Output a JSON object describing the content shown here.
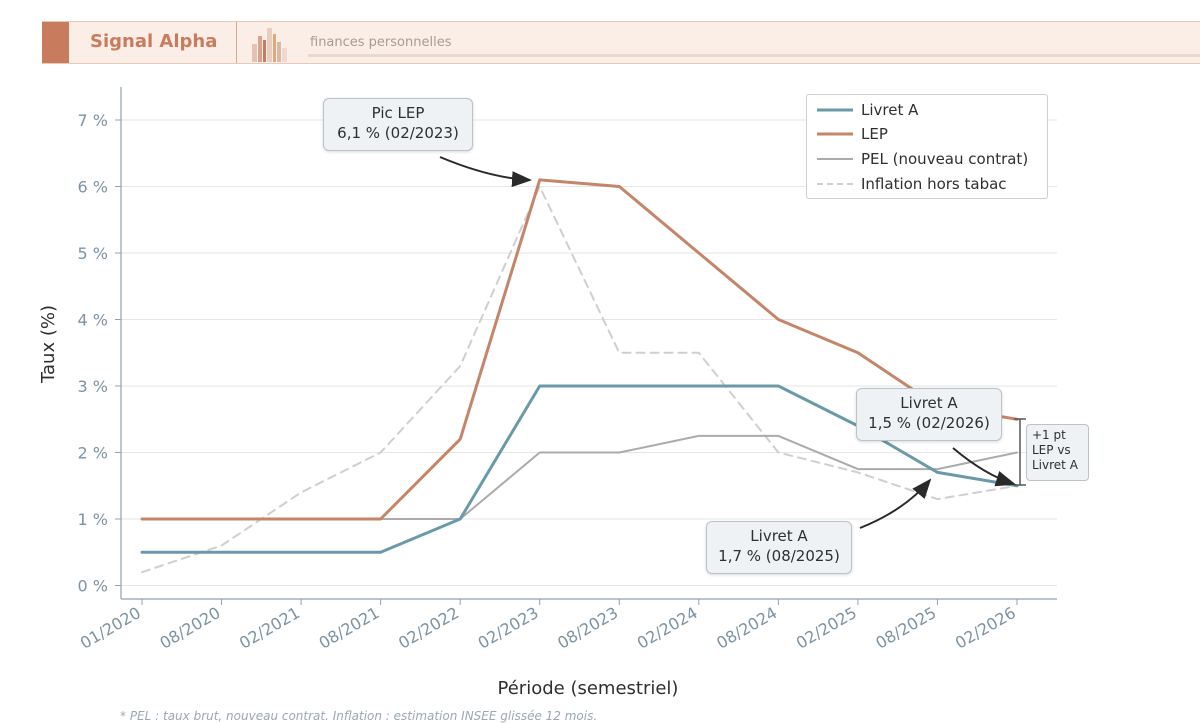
{
  "header": {
    "brand": "Signal Alpha",
    "tagline": "finances personnelles",
    "brand_color": "#c97c5d"
  },
  "chart_data": {
    "type": "line",
    "categories": [
      "01/2020",
      "08/2020",
      "02/2021",
      "08/2021",
      "02/2022",
      "02/2023",
      "08/2023",
      "02/2024",
      "08/2024",
      "02/2025",
      "08/2025",
      "02/2026"
    ],
    "series": [
      {
        "name": "Livret A",
        "color": "#6a9aa8",
        "dash": "solid",
        "values": [
          0.5,
          0.5,
          0.5,
          0.5,
          1.0,
          3.0,
          3.0,
          3.0,
          3.0,
          2.4,
          1.7,
          1.5
        ]
      },
      {
        "name": "LEP",
        "color": "#c4856a",
        "dash": "solid",
        "values": [
          1.0,
          1.0,
          1.0,
          1.0,
          2.2,
          6.1,
          6.0,
          5.0,
          4.0,
          3.5,
          2.7,
          2.5
        ]
      },
      {
        "name": "PEL (nouveau contrat)",
        "color": "#ababab",
        "dash": "solid",
        "values": [
          1.0,
          1.0,
          1.0,
          1.0,
          1.0,
          2.0,
          2.0,
          2.25,
          2.25,
          1.75,
          1.75,
          2.0
        ]
      },
      {
        "name": "Inflation hors tabac",
        "color": "#cfcfcf",
        "dash": "dashed",
        "values": [
          0.2,
          0.6,
          1.4,
          2.0,
          3.3,
          6.0,
          3.5,
          3.5,
          2.0,
          1.7,
          1.3,
          1.5
        ]
      }
    ],
    "yticks": [
      "0 %",
      "1 %",
      "2 %",
      "3 %",
      "4 %",
      "5 %",
      "6 %",
      "7 %"
    ],
    "ylim": [
      -0.2,
      7.4
    ],
    "xlabel": "Période (semestriel)",
    "ylabel": "Taux (%)",
    "grid": "horizontal",
    "legend_position": "top-right",
    "annotations": {
      "pic_lep": [
        "Pic LEP",
        "6,1 % (02/2023)"
      ],
      "livret_a_2026": [
        "Livret A",
        "1,5 % (02/2026)"
      ],
      "livret_a_2025": [
        "Livret A",
        "1,7 % (08/2025)"
      ],
      "gap": [
        "+1 pt",
        "LEP vs",
        "Livret A"
      ]
    }
  },
  "footnote": "* PEL : taux brut, nouveau contrat. Inflation : estimation INSEE glissée 12 mois."
}
